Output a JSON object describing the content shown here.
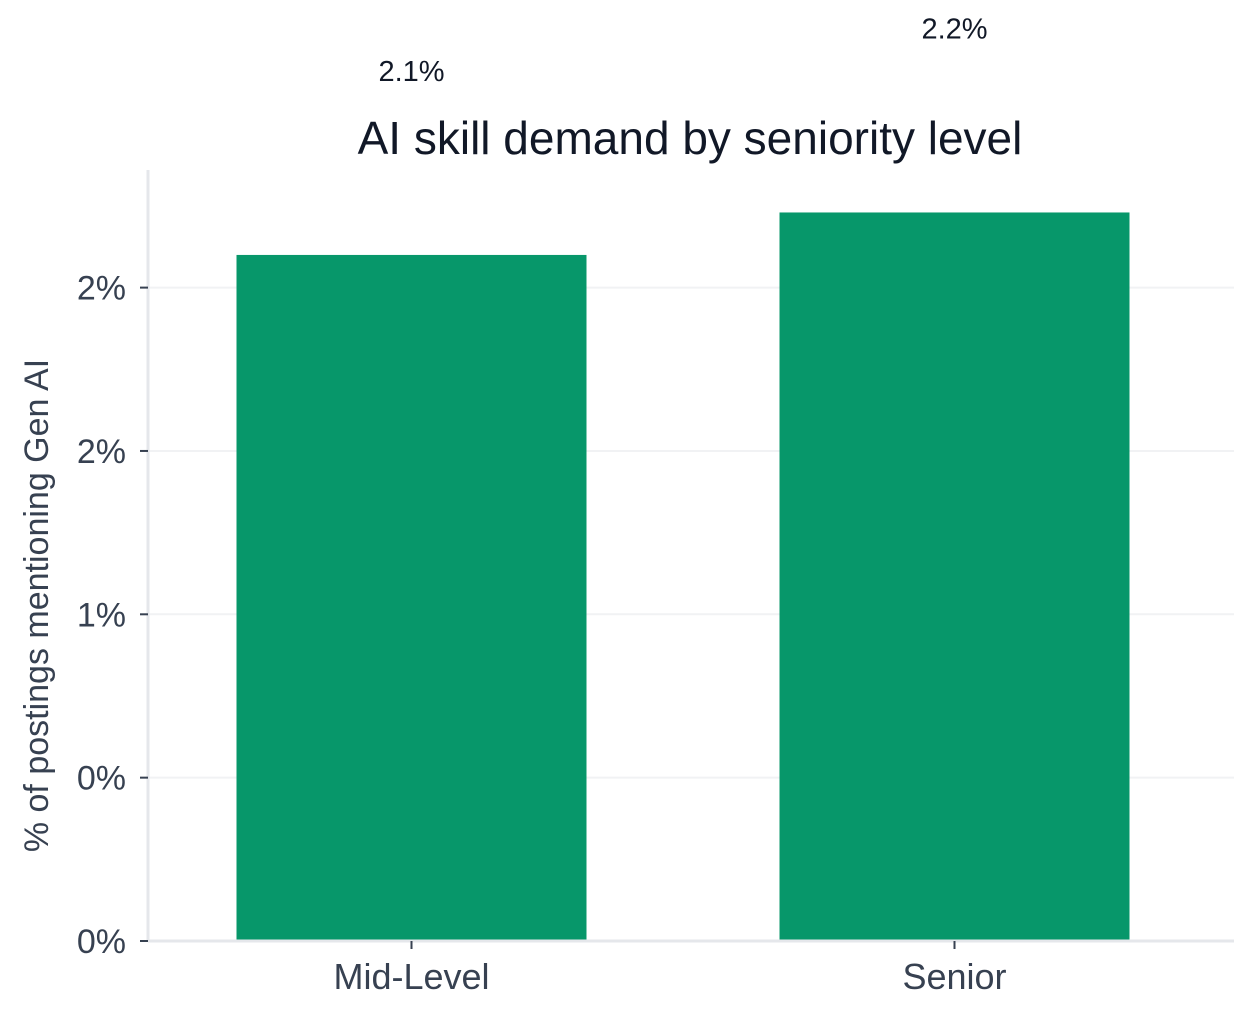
{
  "chart_data": {
    "type": "bar",
    "title": "AI skill demand by seniority level",
    "xlabel": "",
    "ylabel": "% of postings mentioning Gen AI",
    "categories": [
      "Mid-Level",
      "Senior"
    ],
    "values": [
      2.1,
      2.23
    ],
    "data_labels": [
      "2.1%",
      "2.2%"
    ],
    "ylim": [
      0,
      2.36
    ],
    "yticks": [
      0,
      0.5,
      1.0,
      1.5,
      2.0
    ],
    "ytick_labels": [
      "0%",
      "0%",
      "1%",
      "2%",
      "2%"
    ],
    "grid": true,
    "legend": "none",
    "bar_color": "#07976A"
  }
}
